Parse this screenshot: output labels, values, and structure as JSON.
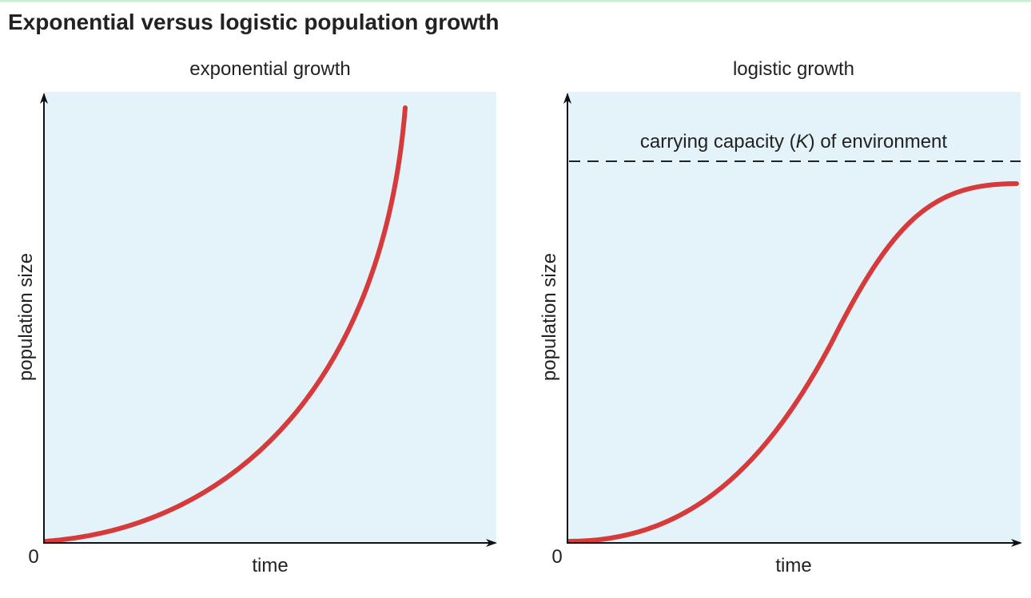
{
  "title": "Exponential versus logistic population growth",
  "panels": [
    {
      "title": "exponential growth",
      "y_label": "population size",
      "x_label": "time",
      "origin": "0"
    },
    {
      "title": "logistic growth",
      "y_label": "population size",
      "x_label": "time",
      "origin": "0",
      "capacity_label": [
        "carrying capacity (",
        "K",
        ") of environment"
      ]
    }
  ]
}
